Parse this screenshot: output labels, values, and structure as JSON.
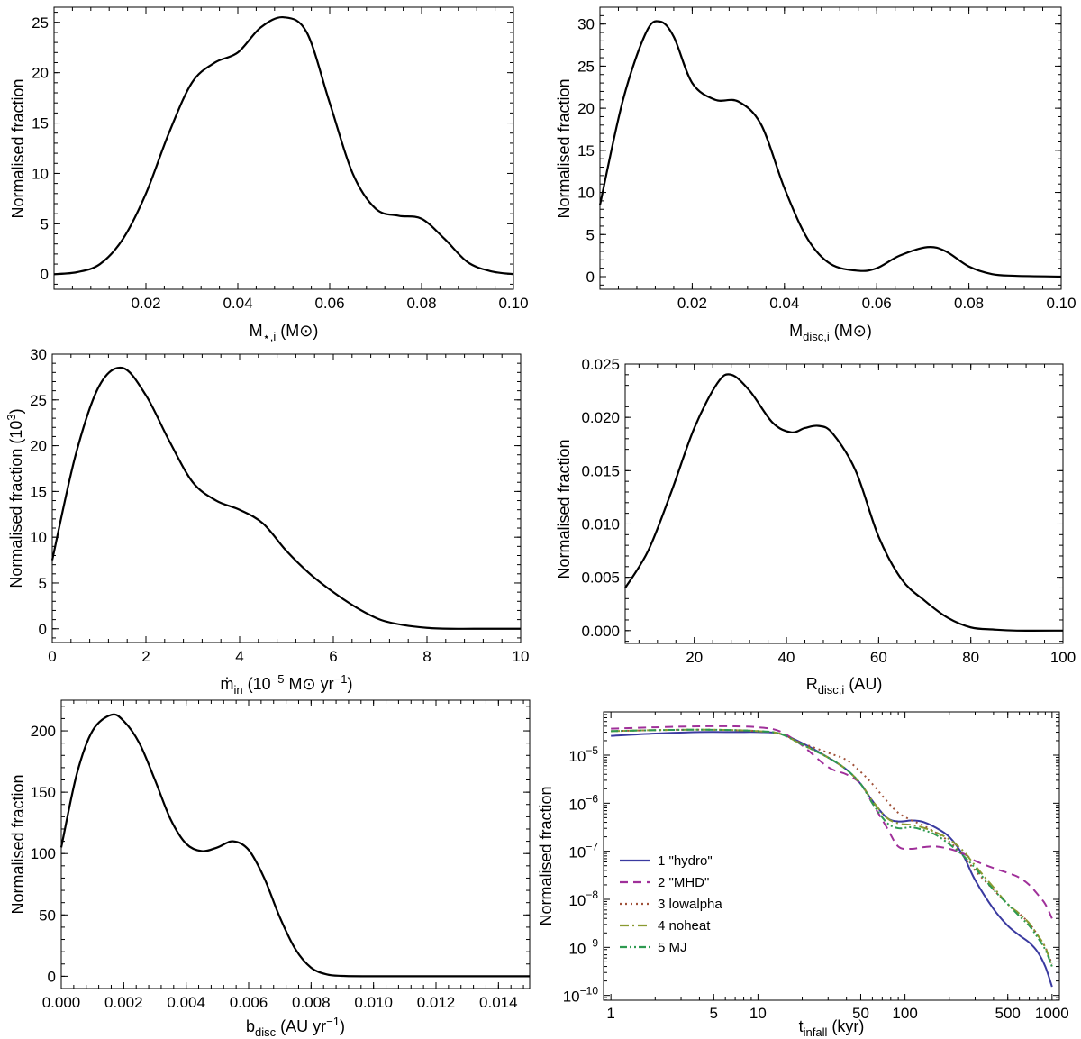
{
  "figure": {
    "description_free": true
  },
  "chart_data": [
    {
      "id": "mstar",
      "type": "line",
      "xlabel_main": "M",
      "xlabel_sub": "⋆,i",
      "xlabel_unit": " (M⊙)",
      "ylabel": "Normalised fraction",
      "xlim": [
        0.0,
        0.1
      ],
      "ylim": [
        -1.5,
        26.5
      ],
      "xticks": [
        0.02,
        0.04,
        0.06,
        0.08,
        0.1
      ],
      "xtick_labels": [
        "0.02",
        "0.04",
        "0.06",
        "0.08",
        "0.10"
      ],
      "yticks": [
        0,
        5,
        10,
        15,
        20,
        25
      ],
      "ytick_labels": [
        "0",
        "5",
        "10",
        "15",
        "20",
        "25"
      ],
      "series": [
        {
          "name": "distribution",
          "color": "#000000",
          "x": [
            0.0,
            0.005,
            0.01,
            0.015,
            0.02,
            0.025,
            0.03,
            0.035,
            0.04,
            0.045,
            0.05,
            0.055,
            0.06,
            0.065,
            0.07,
            0.075,
            0.08,
            0.085,
            0.09,
            0.095,
            0.1
          ],
          "y": [
            0.0,
            0.2,
            1.0,
            3.5,
            8.0,
            14.0,
            19.0,
            21.0,
            22.0,
            24.5,
            25.5,
            24.0,
            17.0,
            10.0,
            6.5,
            5.8,
            5.5,
            3.5,
            1.2,
            0.3,
            0.0
          ]
        }
      ]
    },
    {
      "id": "mdisc",
      "type": "line",
      "xlabel_main": "M",
      "xlabel_sub": "disc,i",
      "xlabel_unit": " (M⊙)",
      "ylabel": "Normalised fraction",
      "xlim": [
        0.0,
        0.1
      ],
      "ylim": [
        -1.5,
        32.0
      ],
      "xticks": [
        0.02,
        0.04,
        0.06,
        0.08,
        0.1
      ],
      "xtick_labels": [
        "0.02",
        "0.04",
        "0.06",
        "0.08",
        "0.10"
      ],
      "yticks": [
        0,
        5,
        10,
        15,
        20,
        25,
        30
      ],
      "ytick_labels": [
        "0",
        "5",
        "10",
        "15",
        "20",
        "25",
        "30"
      ],
      "series": [
        {
          "name": "distribution",
          "color": "#000000",
          "x": [
            0.0,
            0.005,
            0.01,
            0.013,
            0.016,
            0.02,
            0.025,
            0.03,
            0.035,
            0.04,
            0.045,
            0.05,
            0.056,
            0.06,
            0.065,
            0.071,
            0.075,
            0.08,
            0.085,
            0.09,
            0.1
          ],
          "y": [
            8.5,
            21.0,
            29.0,
            30.3,
            28.5,
            23.0,
            21.0,
            20.8,
            18.0,
            10.5,
            4.5,
            1.5,
            0.7,
            1.0,
            2.5,
            3.5,
            3.0,
            1.2,
            0.3,
            0.1,
            0.0
          ]
        }
      ]
    },
    {
      "id": "mdotin",
      "type": "line",
      "xlabel_main": "ṁ",
      "xlabel_sub": "in",
      "xlabel_unit": " (10",
      "xlabel_exp": "−5",
      "xlabel_tail": " M⊙ yr",
      "xlabel_tail_exp": "−1",
      "xlabel_close": ")",
      "ylabel": "Normalised fraction (10",
      "ylabel_exp": "3",
      "ylabel_close": ")",
      "xlim": [
        0,
        10
      ],
      "ylim": [
        -1.5,
        30.0
      ],
      "xticks": [
        0,
        2,
        4,
        6,
        8,
        10
      ],
      "xtick_labels": [
        "0",
        "2",
        "4",
        "6",
        "8",
        "10"
      ],
      "yticks": [
        0,
        5,
        10,
        15,
        20,
        25,
        30
      ],
      "ytick_labels": [
        "0",
        "5",
        "10",
        "15",
        "20",
        "25",
        "30"
      ],
      "series": [
        {
          "name": "distribution",
          "color": "#000000",
          "x": [
            0.0,
            0.5,
            1.0,
            1.5,
            2.0,
            2.5,
            3.0,
            3.5,
            4.0,
            4.5,
            5.0,
            5.5,
            6.0,
            6.5,
            7.0,
            7.5,
            8.0,
            8.5,
            9.0,
            10.0
          ],
          "y": [
            7.5,
            19.0,
            26.5,
            28.5,
            25.5,
            20.5,
            16.0,
            14.0,
            13.0,
            11.5,
            8.5,
            6.0,
            4.0,
            2.3,
            1.0,
            0.4,
            0.1,
            0.0,
            0.0,
            0.0
          ]
        }
      ]
    },
    {
      "id": "rdisc",
      "type": "line",
      "xlabel_main": "R",
      "xlabel_sub": "disc,i",
      "xlabel_unit": " (AU)",
      "ylabel": "Normalised fraction",
      "xlim": [
        5,
        100
      ],
      "ylim": [
        -0.0012,
        0.025
      ],
      "xticks": [
        20,
        40,
        60,
        80,
        100
      ],
      "xtick_labels": [
        "20",
        "40",
        "60",
        "80",
        "100"
      ],
      "yticks": [
        0.0,
        0.005,
        0.01,
        0.015,
        0.02,
        0.025
      ],
      "ytick_labels": [
        "0.000",
        "0.005",
        "0.010",
        "0.015",
        "0.020",
        "0.025"
      ],
      "series": [
        {
          "name": "distribution",
          "color": "#000000",
          "x": [
            5,
            10,
            15,
            20,
            25,
            28,
            32,
            37,
            41,
            44,
            47,
            50,
            55,
            60,
            65,
            70,
            75,
            80,
            85,
            90,
            100
          ],
          "y": [
            0.004,
            0.0075,
            0.013,
            0.019,
            0.0232,
            0.024,
            0.0225,
            0.0195,
            0.0186,
            0.019,
            0.0192,
            0.0185,
            0.015,
            0.0088,
            0.0048,
            0.0028,
            0.0012,
            0.0003,
            0.0001,
            0.0,
            0.0
          ]
        }
      ]
    },
    {
      "id": "bdisc",
      "type": "line",
      "xlabel_main": "b",
      "xlabel_sub": "disc",
      "xlabel_unit": " (AU yr",
      "xlabel_exp": "−1",
      "xlabel_close": ")",
      "ylabel": "Normalised fraction",
      "xlim": [
        0.0,
        0.015
      ],
      "ylim": [
        -10,
        225
      ],
      "xticks": [
        0.0,
        0.002,
        0.004,
        0.006,
        0.008,
        0.01,
        0.012,
        0.014
      ],
      "xtick_labels": [
        "0.000",
        "0.002",
        "0.004",
        "0.006",
        "0.008",
        "0.010",
        "0.012",
        "0.014"
      ],
      "yticks": [
        0,
        50,
        100,
        150,
        200
      ],
      "ytick_labels": [
        "0",
        "50",
        "100",
        "150",
        "200"
      ],
      "series": [
        {
          "name": "distribution",
          "color": "#000000",
          "x": [
            0.0,
            0.0005,
            0.001,
            0.0016,
            0.002,
            0.0025,
            0.003,
            0.0035,
            0.004,
            0.0045,
            0.005,
            0.0055,
            0.006,
            0.0065,
            0.007,
            0.0075,
            0.008,
            0.0085,
            0.009,
            0.01,
            0.015
          ],
          "y": [
            105,
            165,
            200,
            213,
            208,
            190,
            160,
            128,
            108,
            102,
            105,
            110,
            103,
            80,
            48,
            22,
            7,
            1.5,
            0.3,
            0.0,
            0.0
          ]
        }
      ]
    },
    {
      "id": "tinfall",
      "type": "line",
      "scale": "loglog",
      "xlabel_main": "t",
      "xlabel_sub": "infall",
      "xlabel_unit": " (kyr)",
      "ylabel": "Normalised fraction",
      "xlim_log10": [
        -0.05,
        3.05
      ],
      "ylim_log10": [
        -10.1,
        -4.1
      ],
      "xticks_log10": [
        0,
        0.699,
        1,
        1.699,
        2,
        2.699,
        3
      ],
      "xtick_labels": [
        "1",
        "5",
        "10",
        "50",
        "100",
        "500",
        "1000"
      ],
      "yticks_log10": [
        -10,
        -9,
        -8,
        -7,
        -6,
        -5
      ],
      "ytick_labels": [
        "10",
        "10",
        "10",
        "10",
        "10",
        "10"
      ],
      "ytick_exps": [
        "−10",
        "−9",
        "−8",
        "−7",
        "−6",
        "−5"
      ],
      "x_kyr": [
        1,
        2,
        4,
        7,
        10,
        14,
        20,
        30,
        40,
        50,
        60,
        75,
        90,
        110,
        130,
        160,
        200,
        250,
        300,
        400,
        500,
        600,
        700,
        800,
        900,
        1000
      ],
      "series": [
        {
          "name": "1 \"hydro\"",
          "color": "#3a3aa0",
          "dash": "",
          "y_log10": [
            -4.6,
            -4.55,
            -4.52,
            -4.52,
            -4.52,
            -4.55,
            -4.75,
            -5.05,
            -5.3,
            -5.6,
            -5.95,
            -6.3,
            -6.38,
            -6.36,
            -6.38,
            -6.5,
            -6.7,
            -7.1,
            -7.6,
            -8.2,
            -8.55,
            -8.75,
            -8.9,
            -9.1,
            -9.4,
            -9.82
          ]
        },
        {
          "name": "2 \"MHD\"",
          "color": "#a0309a",
          "dash": "9,6",
          "y_log10": [
            -4.45,
            -4.42,
            -4.4,
            -4.4,
            -4.42,
            -4.5,
            -4.8,
            -5.25,
            -5.4,
            -5.6,
            -6.0,
            -6.5,
            -6.9,
            -6.95,
            -6.92,
            -6.9,
            -6.95,
            -7.05,
            -7.2,
            -7.35,
            -7.45,
            -7.55,
            -7.7,
            -7.9,
            -8.1,
            -8.4
          ]
        },
        {
          "name": "3 lowalpha",
          "color": "#a0523a",
          "dash": "2,4",
          "y_log10": [
            -4.5,
            -4.48,
            -4.47,
            -4.48,
            -4.5,
            -4.55,
            -4.75,
            -4.95,
            -5.1,
            -5.35,
            -5.6,
            -5.95,
            -6.2,
            -6.35,
            -6.45,
            -6.6,
            -6.8,
            -7.1,
            -7.4,
            -7.8,
            -8.1,
            -8.3,
            -8.5,
            -8.75,
            -9.0,
            -9.35
          ]
        },
        {
          "name": "4 noheat",
          "color": "#8a9a30",
          "dash": "10,4,2,4",
          "y_log10": [
            -4.5,
            -4.48,
            -4.47,
            -4.48,
            -4.5,
            -4.55,
            -4.78,
            -5.05,
            -5.3,
            -5.6,
            -5.95,
            -6.3,
            -6.42,
            -6.45,
            -6.5,
            -6.6,
            -6.75,
            -7.0,
            -7.3,
            -7.75,
            -8.1,
            -8.3,
            -8.5,
            -8.75,
            -9.0,
            -9.4
          ]
        },
        {
          "name": "5 MJ",
          "color": "#2e9a50",
          "dash": "8,3,2,3,2,3",
          "y_log10": [
            -4.5,
            -4.48,
            -4.47,
            -4.48,
            -4.5,
            -4.55,
            -4.78,
            -5.05,
            -5.3,
            -5.6,
            -6.0,
            -6.4,
            -6.52,
            -6.5,
            -6.55,
            -6.65,
            -6.85,
            -7.1,
            -7.35,
            -7.8,
            -8.1,
            -8.35,
            -8.55,
            -8.8,
            -9.05,
            -9.4
          ]
        }
      ]
    }
  ]
}
